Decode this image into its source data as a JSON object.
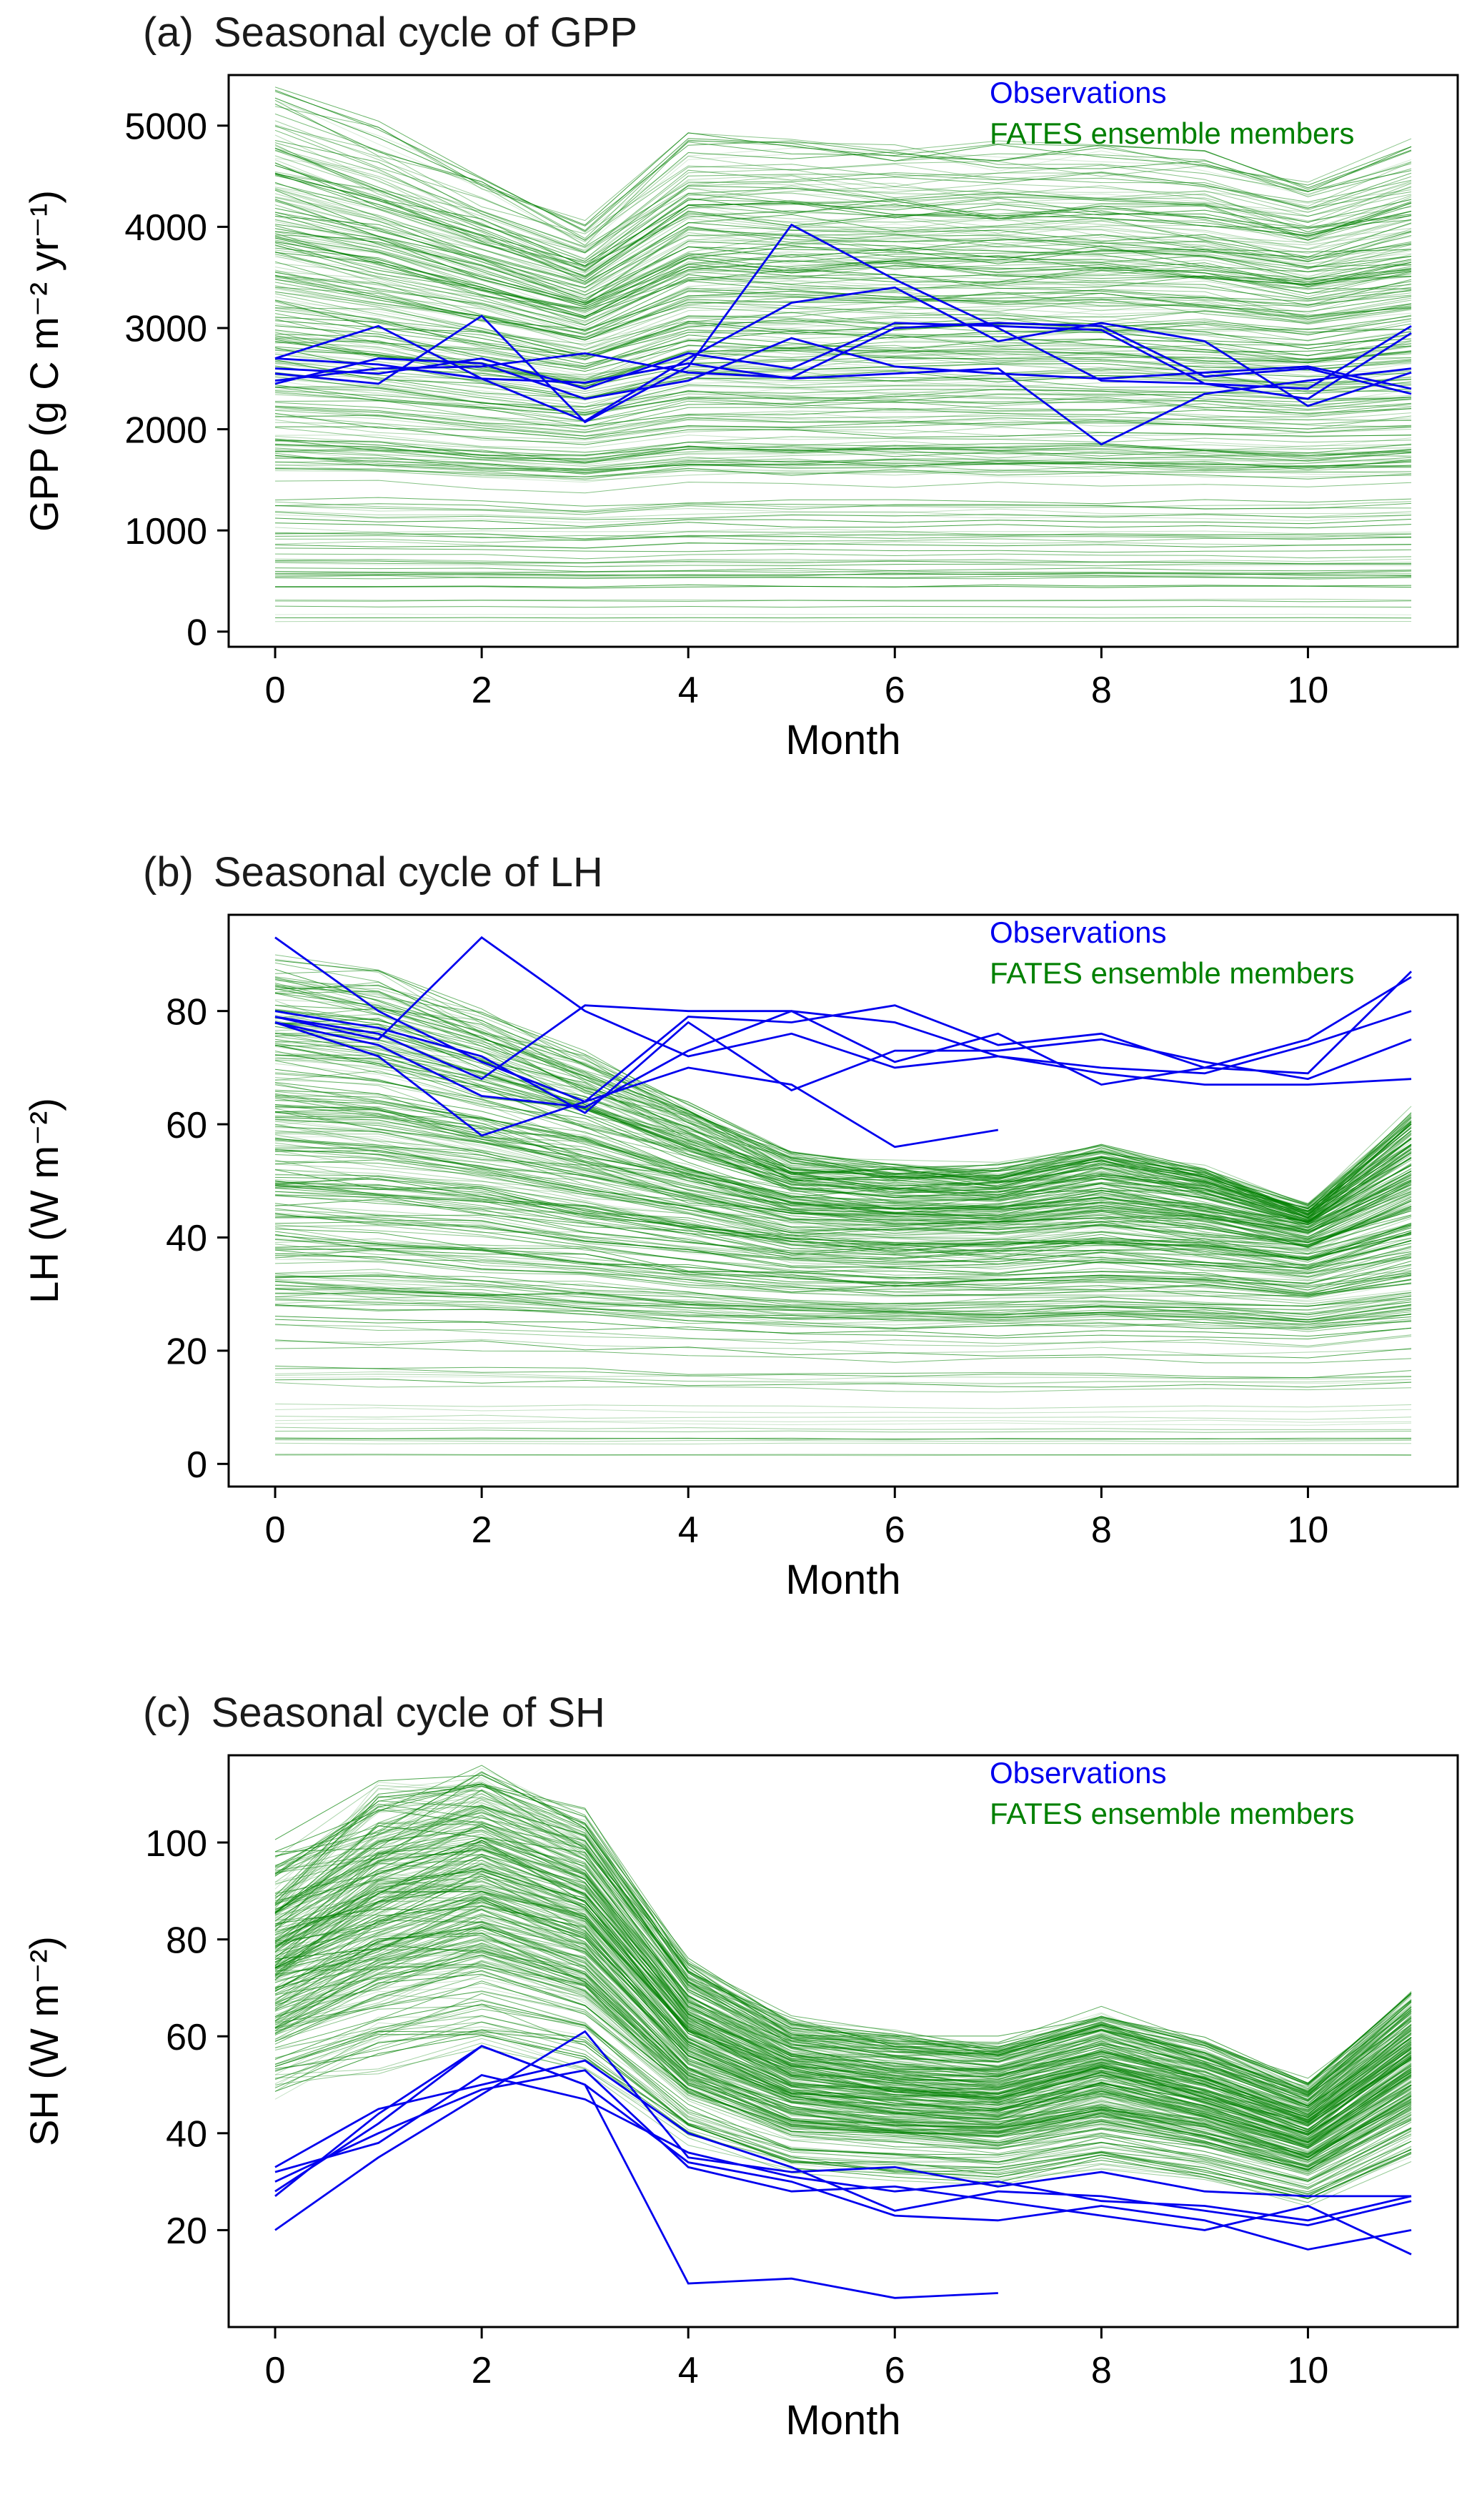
{
  "figure": {
    "background": "#ffffff",
    "colors": {
      "observations": "#0000ee",
      "ensemble": "#008000",
      "axis": "#000000"
    }
  },
  "chart_data": [
    {
      "type": "line",
      "title_prefix": "(a)",
      "title": "Seasonal cycle of GPP",
      "xlabel": "Month",
      "ylabel": "GPP (g C m⁻² yr⁻¹)",
      "x": [
        0,
        1,
        2,
        3,
        4,
        5,
        6,
        7,
        8,
        9,
        10,
        11
      ],
      "xlim": [
        -0.45,
        11.45
      ],
      "ylim": [
        -150,
        5500
      ],
      "xticks": [
        0,
        2,
        4,
        6,
        8,
        10
      ],
      "yticks": [
        0,
        1000,
        2000,
        3000,
        4000,
        5000
      ],
      "grid": false,
      "legend_position": "top-right",
      "legend": [
        {
          "label": "Observations",
          "color": "#0000ee"
        },
        {
          "label": "FATES ensemble members",
          "color": "#008000"
        }
      ],
      "observations": {
        "name": "Observations",
        "lines": [
          [
            2700,
            3020,
            2500,
            2080,
            2700,
            3250,
            3400,
            2870,
            3050,
            2870,
            2230,
            2560
          ],
          [
            2550,
            2450,
            3120,
            2070,
            2620,
            4020,
            3480,
            3000,
            2480,
            2450,
            2400,
            3020
          ],
          [
            2480,
            2600,
            2620,
            2750,
            2560,
            2510,
            3000,
            3050,
            3020,
            2520,
            2600,
            2350
          ],
          [
            2700,
            2640,
            2500,
            2460,
            2650,
            2500,
            2550,
            2600,
            1850,
            2350,
            2480,
            2600
          ],
          [
            2450,
            2700,
            2650,
            2300,
            2480,
            2900,
            2620,
            2550,
            2500,
            2560,
            2620,
            2400
          ],
          [
            2600,
            2550,
            2700,
            2400,
            2750,
            2600,
            3050,
            3020,
            2980,
            2450,
            2300,
            2950
          ]
        ]
      },
      "ensemble": {
        "name": "FATES ensemble members",
        "count": 280,
        "shape": [
          1.0,
          0.93,
          0.84,
          0.75,
          0.915,
          0.91,
          0.905,
          0.9,
          0.9,
          0.89,
          0.84,
          0.9
        ],
        "level_groups": [
          {
            "frac": 0.04,
            "min": 4900,
            "max": 5350
          },
          {
            "frac": 0.16,
            "min": 80,
            "max": 1600
          },
          {
            "frac": 0.8,
            "min": 1600,
            "max": 4900
          }
        ],
        "level_weighted": true,
        "wmax": 5300,
        "noise": 0.025,
        "noise_early": 0.025
      }
    },
    {
      "type": "line",
      "title_prefix": "(b)",
      "title": "Seasonal cycle of LH",
      "xlabel": "Month",
      "ylabel": "LH (W m⁻²)",
      "x": [
        0,
        1,
        2,
        3,
        4,
        5,
        6,
        7,
        8,
        9,
        10,
        11
      ],
      "xlim": [
        -0.45,
        11.45
      ],
      "ylim": [
        -4,
        97
      ],
      "xticks": [
        0,
        2,
        4,
        6,
        8,
        10
      ],
      "yticks": [
        0,
        20,
        40,
        60,
        80
      ],
      "grid": false,
      "legend_position": "top-right",
      "legend": [
        {
          "label": "Observations",
          "color": "#0000ee"
        },
        {
          "label": "FATES ensemble members",
          "color": "#008000"
        }
      ],
      "observations": {
        "name": "Observations",
        "lines": [
          [
            93,
            80,
            71,
            64,
            79,
            78,
            81,
            74,
            76,
            70,
            75,
            86
          ],
          [
            79,
            76,
            68,
            81,
            80,
            80,
            71,
            76,
            67,
            70,
            69,
            87
          ],
          [
            80,
            77,
            72,
            62,
            78,
            66,
            73,
            73,
            75,
            71,
            68,
            75
          ],
          [
            78,
            72,
            58,
            64,
            70,
            67,
            56,
            59
          ],
          [
            79,
            75,
            93,
            80,
            72,
            76,
            70,
            72,
            69,
            67,
            67,
            68
          ],
          [
            78,
            74,
            65,
            63,
            73,
            80,
            78,
            72,
            70,
            69,
            74,
            80
          ]
        ]
      },
      "ensemble": {
        "name": "FATES ensemble members",
        "count": 280,
        "shape": [
          1.0,
          0.975,
          0.9,
          0.815,
          0.715,
          0.615,
          0.595,
          0.59,
          0.635,
          0.59,
          0.51,
          0.7
        ],
        "level_groups": [
          {
            "frac": 0.12,
            "min": 1,
            "max": 28
          },
          {
            "frac": 0.88,
            "min": 28,
            "max": 88
          }
        ],
        "level_weighted": true,
        "wmax": 88,
        "noise": 0.03,
        "noise_early": 0.03
      }
    },
    {
      "type": "line",
      "title_prefix": "(c)",
      "title": "Seasonal cycle of SH",
      "xlabel": "Month",
      "ylabel": "SH (W m⁻²)",
      "x": [
        0,
        1,
        2,
        3,
        4,
        5,
        6,
        7,
        8,
        9,
        10,
        11
      ],
      "xlim": [
        -0.45,
        11.45
      ],
      "ylim": [
        0,
        118
      ],
      "xticks": [
        0,
        2,
        4,
        6,
        8,
        10
      ],
      "yticks": [
        20,
        40,
        60,
        80,
        100
      ],
      "grid": false,
      "legend_position": "top-right",
      "legend": [
        {
          "label": "Observations",
          "color": "#0000ee"
        },
        {
          "label": "FATES ensemble members",
          "color": "#008000"
        }
      ],
      "observations": {
        "name": "Observations",
        "lines": [
          [
            20,
            35,
            48,
            61,
            35,
            32,
            33,
            29,
            32,
            28,
            27,
            27
          ],
          [
            28,
            42,
            58,
            50,
            34,
            30,
            23,
            22,
            25,
            22,
            16,
            20
          ],
          [
            33,
            45,
            50,
            55,
            40,
            33,
            24,
            28,
            27,
            24,
            21,
            26
          ],
          [
            27,
            44,
            58,
            50,
            9,
            10,
            6,
            7
          ],
          [
            30,
            40,
            49,
            53,
            33,
            28,
            29,
            26,
            23,
            20,
            25,
            15
          ],
          [
            32,
            38,
            52,
            47,
            36,
            31,
            28,
            30,
            26,
            25,
            22,
            27
          ]
        ]
      },
      "ensemble": {
        "name": "FATES ensemble members",
        "count": 300,
        "shape": [
          0.83,
          0.95,
          1.0,
          0.92,
          0.66,
          0.555,
          0.53,
          0.515,
          0.57,
          0.515,
          0.44,
          0.6
        ],
        "level_groups": [
          {
            "frac": 0.1,
            "min": 58,
            "max": 74
          },
          {
            "frac": 0.9,
            "min": 74,
            "max": 114
          }
        ],
        "level_weighted": false,
        "wmax": 114,
        "noise": 0.03,
        "noise_early": 0.07
      }
    }
  ]
}
